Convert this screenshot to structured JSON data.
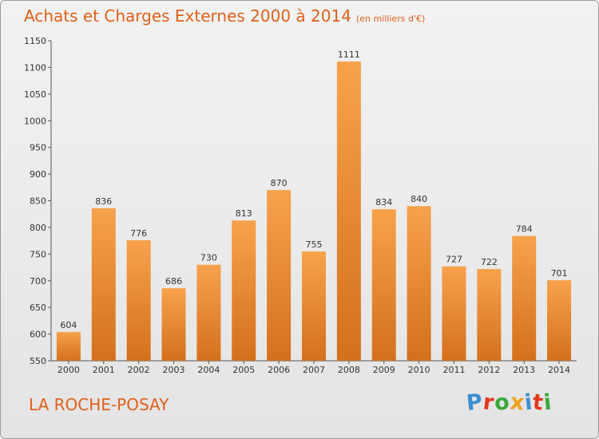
{
  "chart_data": {
    "type": "bar",
    "title": "Achats et Charges Externes 2000 à 2014",
    "subtitle": "(en milliers d'€)",
    "categories": [
      "2000",
      "2001",
      "2002",
      "2003",
      "2004",
      "2005",
      "2006",
      "2007",
      "2008",
      "2009",
      "2010",
      "2011",
      "2012",
      "2013",
      "2014"
    ],
    "values": [
      604,
      836,
      776,
      686,
      730,
      813,
      870,
      755,
      1111,
      834,
      840,
      727,
      722,
      784,
      701
    ],
    "ylim": [
      550,
      1150
    ],
    "yticks": [
      550,
      600,
      650,
      700,
      750,
      800,
      850,
      900,
      950,
      1000,
      1050,
      1100,
      1150
    ],
    "grid": false,
    "legend": "none",
    "bar_color": "#f0923a"
  },
  "commune": "LA ROCHE-POSAY",
  "logo": {
    "letters": [
      {
        "ch": "P",
        "color": "#3b8fd1"
      },
      {
        "ch": "r",
        "color": "#e2371d"
      },
      {
        "ch": "o",
        "color": "#3aa83a"
      },
      {
        "ch": "x",
        "color": "#f0a21b"
      },
      {
        "ch": "i",
        "color": "#3b8fd1"
      },
      {
        "ch": "t",
        "color": "#e2371d"
      },
      {
        "ch": "i",
        "color": "#3aa83a"
      }
    ]
  }
}
